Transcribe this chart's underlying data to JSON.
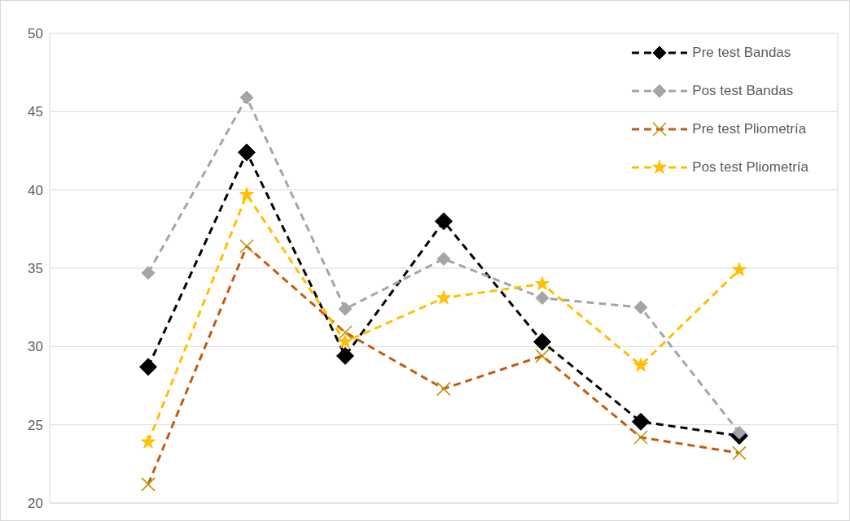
{
  "chart_data": {
    "type": "line",
    "categories": [
      null,
      null,
      null,
      null,
      null,
      null,
      null,
      null,
      null
    ],
    "ylim": [
      20,
      50
    ],
    "yticks": [
      20,
      25,
      30,
      35,
      40,
      45,
      50
    ],
    "grid": true,
    "tick_labels": "y",
    "legend": "top right",
    "line_style": "dashed",
    "series": [
      {
        "name": "Pre test Bandas",
        "color": "#000000",
        "marker": "diamond",
        "values": [
          null,
          28.7,
          42.4,
          29.4,
          38.0,
          30.3,
          25.2,
          24.3,
          null
        ]
      },
      {
        "name": "Pos test Bandas",
        "color": "#a5a5a5",
        "marker": "diamond",
        "values": [
          null,
          34.7,
          45.9,
          32.4,
          35.6,
          33.1,
          32.5,
          24.5,
          null
        ]
      },
      {
        "name": "Pre test Pliometría",
        "color": "#c55a11",
        "marker": "cross",
        "values": [
          null,
          21.2,
          36.4,
          30.9,
          27.3,
          29.4,
          24.2,
          23.2,
          null
        ]
      },
      {
        "name": "Pos test Pliometría",
        "color": "#ffc000",
        "marker": "star",
        "values": [
          null,
          23.9,
          39.7,
          30.3,
          33.1,
          34.0,
          28.8,
          34.9,
          null
        ]
      }
    ]
  }
}
